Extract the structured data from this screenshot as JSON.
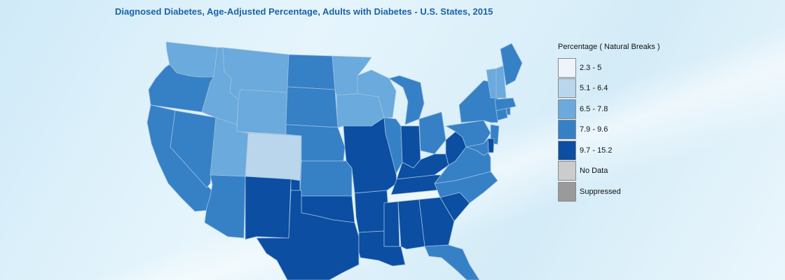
{
  "title": "Diagnosed Diabetes, Age-Adjusted Percentage, Adults with Diabetes - U.S. States, 2015",
  "legend": {
    "title": "Percentage ( Natural Breaks )",
    "items": [
      {
        "label": "2.3 - 5",
        "color": "#eef4fb"
      },
      {
        "label": "5.1 - 6.4",
        "color": "#bad6ec"
      },
      {
        "label": "6.5 - 7.8",
        "color": "#6aaadc"
      },
      {
        "label": "7.9 - 9.6",
        "color": "#3680c6"
      },
      {
        "label": "9.7 - 15.2",
        "color": "#0b4ea2"
      },
      {
        "label": "No Data",
        "color": "#cccccc"
      },
      {
        "label": "Suppressed",
        "color": "#9a9a9a"
      }
    ]
  },
  "map_data": {
    "AL": "9.7 - 15.2",
    "AZ": "7.9 - 9.6",
    "AR": "9.7 - 15.2",
    "CA": "7.9 - 9.6",
    "CO": "5.1 - 6.4",
    "CT": "7.9 - 9.6",
    "DE": "9.7 - 15.2",
    "FL": "7.9 - 9.6",
    "GA": "9.7 - 15.2",
    "ID": "6.5 - 7.8",
    "IL": "7.9 - 9.6",
    "IN": "9.7 - 15.2",
    "IA": "6.5 - 7.8",
    "KS": "7.9 - 9.6",
    "KY": "9.7 - 15.2",
    "LA": "9.7 - 15.2",
    "ME": "7.9 - 9.6",
    "MD": "7.9 - 9.6",
    "MA": "7.9 - 9.6",
    "MI": "7.9 - 9.6",
    "MN": "6.5 - 7.8",
    "MS": "9.7 - 15.2",
    "MO": "9.7 - 15.2",
    "MT": "6.5 - 7.8",
    "NE": "7.9 - 9.6",
    "NV": "7.9 - 9.6",
    "NH": "6.5 - 7.8",
    "NJ": "7.9 - 9.6",
    "NM": "9.7 - 15.2",
    "NY": "7.9 - 9.6",
    "NC": "7.9 - 9.6",
    "ND": "7.9 - 9.6",
    "OH": "7.9 - 9.6",
    "OK": "9.7 - 15.2",
    "OR": "7.9 - 9.6",
    "PA": "7.9 - 9.6",
    "RI": "7.9 - 9.6",
    "SC": "9.7 - 15.2",
    "SD": "7.9 - 9.6",
    "TN": "9.7 - 15.2",
    "TX": "9.7 - 15.2",
    "UT": "6.5 - 7.8",
    "VT": "6.5 - 7.8",
    "VA": "7.9 - 9.6",
    "WA": "6.5 - 7.8",
    "WV": "9.7 - 15.2",
    "WI": "6.5 - 7.8",
    "WY": "6.5 - 7.8"
  }
}
